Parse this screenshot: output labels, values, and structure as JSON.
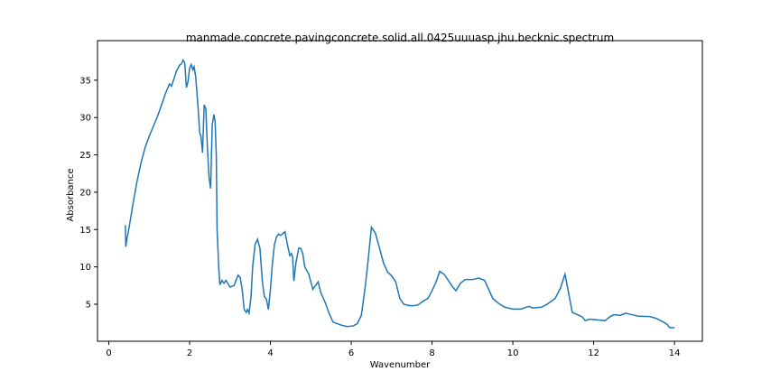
{
  "chart_data": {
    "type": "line",
    "title": "manmade.concrete.pavingconcrete.solid.all.0425uuuasp.jhu.becknic.spectrum",
    "x_label": "Wavenumber",
    "y_label": "Absorbance",
    "xlim": [
      -0.28,
      14.69
    ],
    "ylim": [
      0.04,
      40.3
    ],
    "xticks": [
      0,
      2,
      4,
      6,
      8,
      10,
      12,
      14
    ],
    "yticks": [
      5,
      10,
      15,
      20,
      25,
      30,
      35
    ],
    "grid": false,
    "x": [
      0.41,
      0.42,
      0.45,
      0.5,
      0.6,
      0.7,
      0.8,
      0.9,
      1.0,
      1.1,
      1.2,
      1.3,
      1.4,
      1.5,
      1.55,
      1.6,
      1.68,
      1.75,
      1.8,
      1.84,
      1.88,
      1.92,
      1.96,
      2.0,
      2.04,
      2.08,
      2.11,
      2.15,
      2.2,
      2.25,
      2.28,
      2.32,
      2.36,
      2.4,
      2.44,
      2.48,
      2.52,
      2.56,
      2.6,
      2.63,
      2.66,
      2.68,
      2.72,
      2.75,
      2.8,
      2.85,
      2.9,
      3.0,
      3.1,
      3.15,
      3.2,
      3.25,
      3.3,
      3.35,
      3.4,
      3.43,
      3.47,
      3.52,
      3.56,
      3.62,
      3.68,
      3.74,
      3.8,
      3.85,
      3.9,
      3.95,
      4.0,
      4.05,
      4.1,
      4.15,
      4.2,
      4.25,
      4.3,
      4.36,
      4.42,
      4.48,
      4.52,
      4.55,
      4.58,
      4.63,
      4.7,
      4.75,
      4.8,
      4.85,
      4.95,
      5.05,
      5.13,
      5.18,
      5.25,
      5.35,
      5.45,
      5.55,
      5.65,
      5.75,
      5.9,
      6.05,
      6.15,
      6.25,
      6.35,
      6.42,
      6.5,
      6.6,
      6.7,
      6.8,
      6.9,
      7.0,
      7.1,
      7.2,
      7.3,
      7.45,
      7.55,
      7.65,
      7.75,
      7.9,
      8.0,
      8.1,
      8.19,
      8.3,
      8.4,
      8.5,
      8.59,
      8.7,
      8.82,
      9.0,
      9.15,
      9.3,
      9.4,
      9.5,
      9.65,
      9.8,
      10.0,
      10.2,
      10.33,
      10.4,
      10.49,
      10.71,
      10.85,
      11.05,
      11.18,
      11.29,
      11.38,
      11.47,
      11.6,
      11.72,
      11.79,
      11.9,
      12.1,
      12.28,
      12.4,
      12.5,
      12.65,
      12.79,
      12.95,
      13.1,
      13.39,
      13.55,
      13.73,
      13.82,
      13.88,
      14.0
    ],
    "series": [
      {
        "name": "spectrum",
        "color": "#1f77b4",
        "values": [
          15.6,
          12.7,
          13.8,
          15.2,
          18.5,
          21.5,
          24,
          26,
          27.5,
          28.8,
          30.1,
          31.6,
          33.2,
          34.5,
          34.2,
          35,
          36.3,
          37,
          37.2,
          37.7,
          37.3,
          34.0,
          34.8,
          36.6,
          37.1,
          36.4,
          36.8,
          35.5,
          32,
          28,
          27.5,
          25.3,
          31.7,
          31.2,
          26,
          22,
          20.5,
          29,
          30.4,
          29.5,
          25,
          15,
          10,
          7.6,
          8.2,
          7.8,
          8.2,
          7.3,
          7.5,
          8.2,
          8.9,
          8.6,
          7,
          4.3,
          3.9,
          4.3,
          3.8,
          6,
          10,
          13,
          13.7,
          12.5,
          8,
          6,
          5.7,
          4.3,
          7,
          10.5,
          13,
          14,
          14.4,
          14.2,
          14.4,
          14.7,
          13,
          11.5,
          11.8,
          11.3,
          8.1,
          10.5,
          12.5,
          12.5,
          11.8,
          10,
          9,
          7,
          7.6,
          8,
          6.5,
          5.3,
          3.8,
          2.6,
          2.4,
          2.2,
          2.0,
          2.1,
          2.4,
          3.5,
          7.5,
          11,
          15.3,
          14.5,
          12.5,
          10.5,
          9.3,
          8.8,
          8,
          5.8,
          5.0,
          4.8,
          4.8,
          4.9,
          5.3,
          5.8,
          6.8,
          8,
          9.4,
          9,
          8.2,
          7.4,
          6.8,
          7.8,
          8.3,
          8.3,
          8.5,
          8.2,
          7,
          5.8,
          5.1,
          4.6,
          4.35,
          4.35,
          4.6,
          4.7,
          4.5,
          4.6,
          5,
          5.8,
          7.2,
          9,
          6.5,
          3.9,
          3.6,
          3.3,
          2.8,
          3.0,
          2.9,
          2.8,
          3.3,
          3.6,
          3.5,
          3.8,
          3.6,
          3.4,
          3.35,
          3.1,
          2.6,
          2.3,
          1.85,
          1.85
        ]
      }
    ]
  }
}
